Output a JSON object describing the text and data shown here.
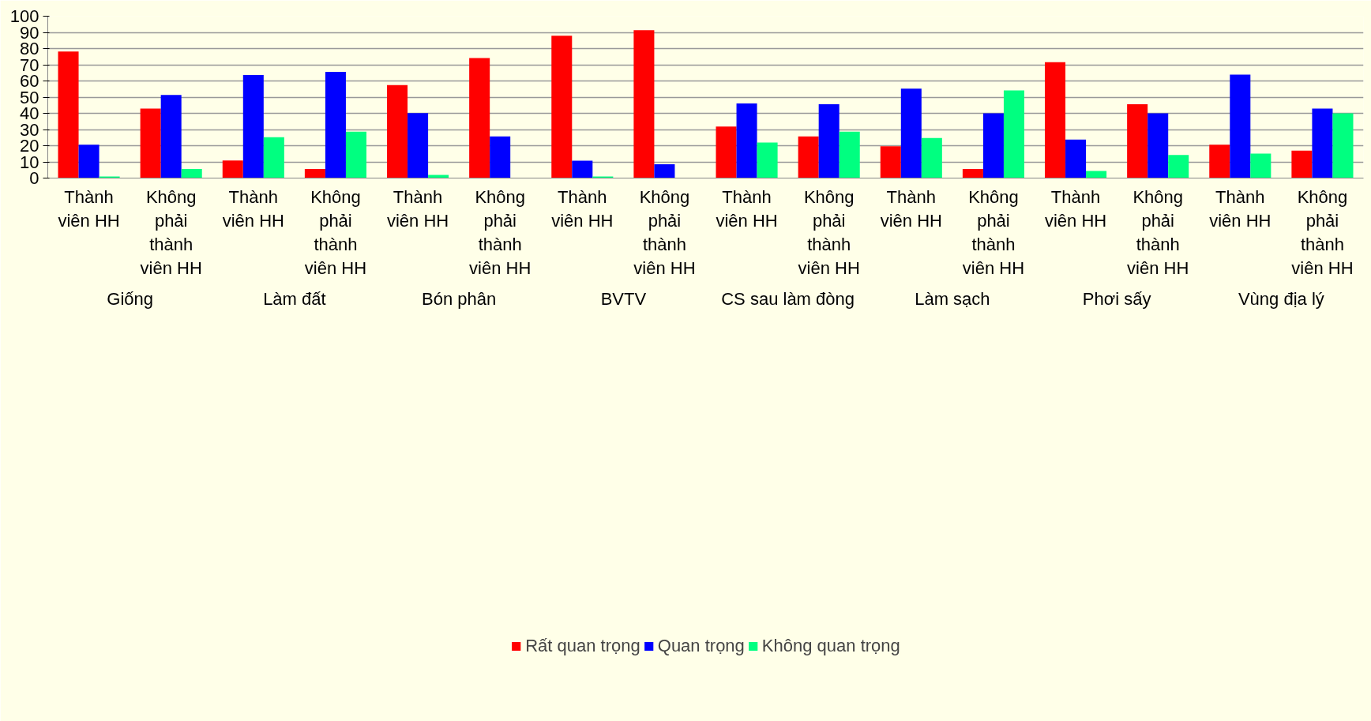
{
  "chart_data": {
    "type": "bar",
    "categories": [
      "Thành viên HH",
      "Không phải thành viên HH",
      "Thành viên HH",
      "Không phải thành viên HH",
      "Thành viên HH",
      "Không phải thành viên HH",
      "Thành viên HH",
      "Không phải thành viên HH",
      "Thành viên HH",
      "Không phải thành viên HH",
      "Thành viên HH",
      "Không phải thành viên HH",
      "Thành viên HH",
      "Không phải thành viên HH",
      "Thành viên HH",
      "Không phải thành viên HH"
    ],
    "annotations": [
      "Giống",
      "Làm đất",
      "Bón phân",
      "BVTV",
      "CS sau làm đòng",
      "Làm sạch",
      "Phơi sấy",
      "Vùng địa lý"
    ],
    "series": [
      {
        "name": "Rất quan trọng",
        "color": "#ff0000",
        "values": [
          78.2,
          42.9,
          10.9,
          5.6,
          57.5,
          74.1,
          87.9,
          91.3,
          31.8,
          25.7,
          19.6,
          5.6,
          71.6,
          45.6,
          20.6,
          17.0
        ]
      },
      {
        "name": "Quan trọng",
        "color": "#0000ff",
        "values": [
          20.6,
          51.4,
          63.6,
          65.6,
          40.1,
          25.7,
          10.7,
          8.5,
          46.1,
          45.6,
          55.3,
          40.0,
          23.8,
          40.0,
          63.9,
          42.9
        ]
      },
      {
        "name": "Không quan trọng",
        "color": "#00ff80",
        "values": [
          1.0,
          5.6,
          25.2,
          28.6,
          2.0,
          0,
          1.0,
          0,
          21.9,
          28.6,
          24.8,
          54.1,
          4.4,
          14.3,
          15.1,
          40.0
        ]
      }
    ],
    "ylim": [
      0,
      100
    ],
    "yticks": [
      0,
      10,
      20,
      30,
      40,
      50,
      60,
      70,
      80,
      90,
      100
    ],
    "grid": "y",
    "legend": "bottom"
  }
}
